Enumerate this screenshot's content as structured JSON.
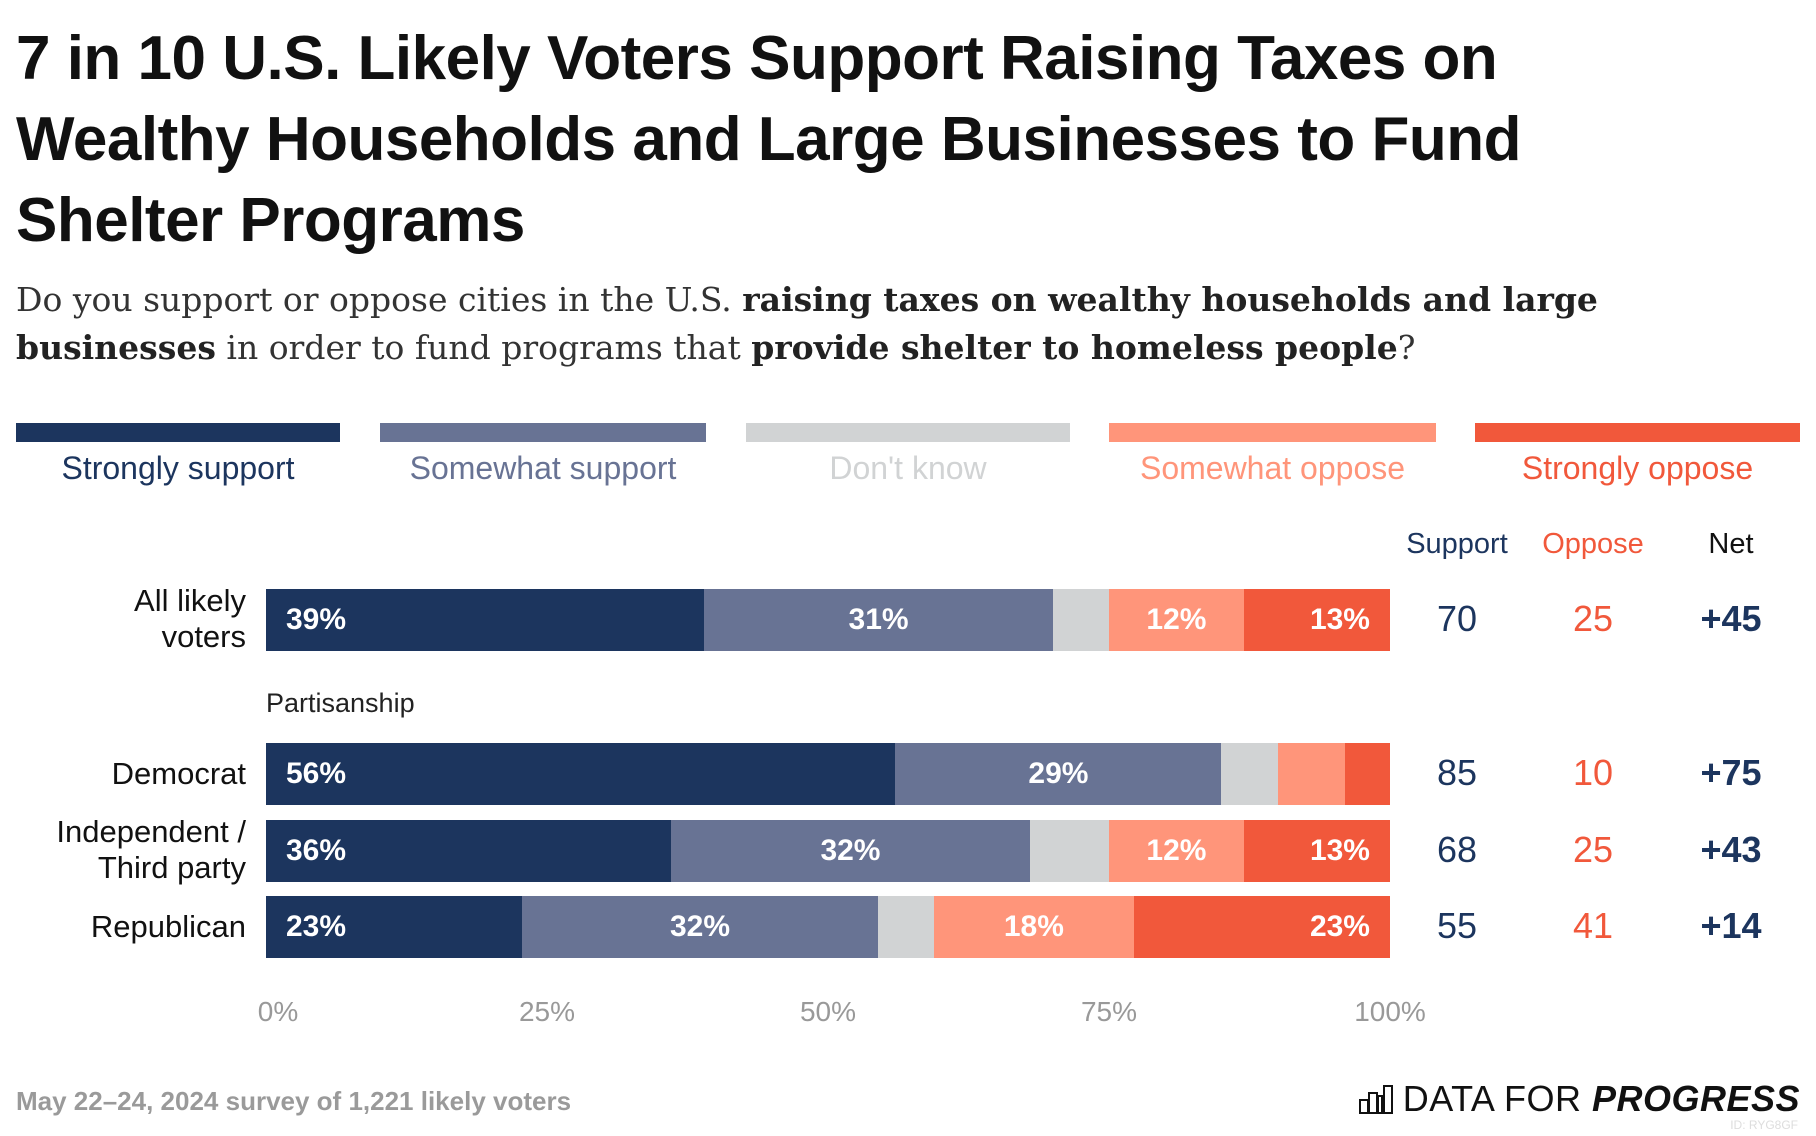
{
  "title": "7 in 10 U.S. Likely Voters Support Raising Taxes on Wealthy Households and Large Businesses to Fund Shelter Programs",
  "subtitle": {
    "parts": [
      "Do you support or oppose cities in the U.S. ",
      "raising taxes on wealthy households and large businesses",
      " in order to fund programs that ",
      "provide shelter to homeless people",
      "?"
    ]
  },
  "colors": {
    "strongly_support": "#1c355e",
    "somewhat_support": "#687394",
    "dont_know": "#d1d3d4",
    "somewhat_oppose": "#ff957a",
    "strongly_oppose": "#f1583b"
  },
  "chart_data": {
    "type": "bar",
    "orientation": "horizontal-stacked",
    "legend": [
      "Strongly support",
      "Somewhat support",
      "Don't know",
      "Somewhat oppose",
      "Strongly oppose"
    ],
    "legend_placement": "top",
    "xlim": [
      0,
      100
    ],
    "x_ticks": [
      "0%",
      "25%",
      "50%",
      "75%",
      "100%"
    ],
    "group_label": "Partisanship",
    "rows": [
      {
        "label": "All likely voters",
        "values": [
          39,
          31,
          5,
          12,
          13
        ],
        "labels": [
          "39%",
          "31%",
          "",
          "12%",
          "13%"
        ],
        "support": "70",
        "oppose": "25",
        "net": "+45"
      },
      {
        "label": "Democrat",
        "values": [
          56,
          29,
          5,
          6,
          4
        ],
        "labels": [
          "56%",
          "29%",
          "",
          "",
          ""
        ],
        "support": "85",
        "oppose": "10",
        "net": "+75"
      },
      {
        "label": "Independent / Third party",
        "values": [
          36,
          32,
          7,
          12,
          13
        ],
        "labels": [
          "36%",
          "32%",
          "",
          "12%",
          "13%"
        ],
        "support": "68",
        "oppose": "25",
        "net": "+43"
      },
      {
        "label": "Republican",
        "values": [
          23,
          32,
          5,
          18,
          23
        ],
        "labels": [
          "23%",
          "32%",
          "",
          "18%",
          "23%"
        ],
        "support": "55",
        "oppose": "41",
        "net": "+14"
      }
    ],
    "summary_headers": [
      "Support",
      "Oppose",
      "Net"
    ]
  },
  "footer": {
    "note": "May 22–24, 2024 survey of 1,221 likely voters",
    "logo": "DATA FOR PROGRESS",
    "id": "ID: RYG8GF"
  }
}
